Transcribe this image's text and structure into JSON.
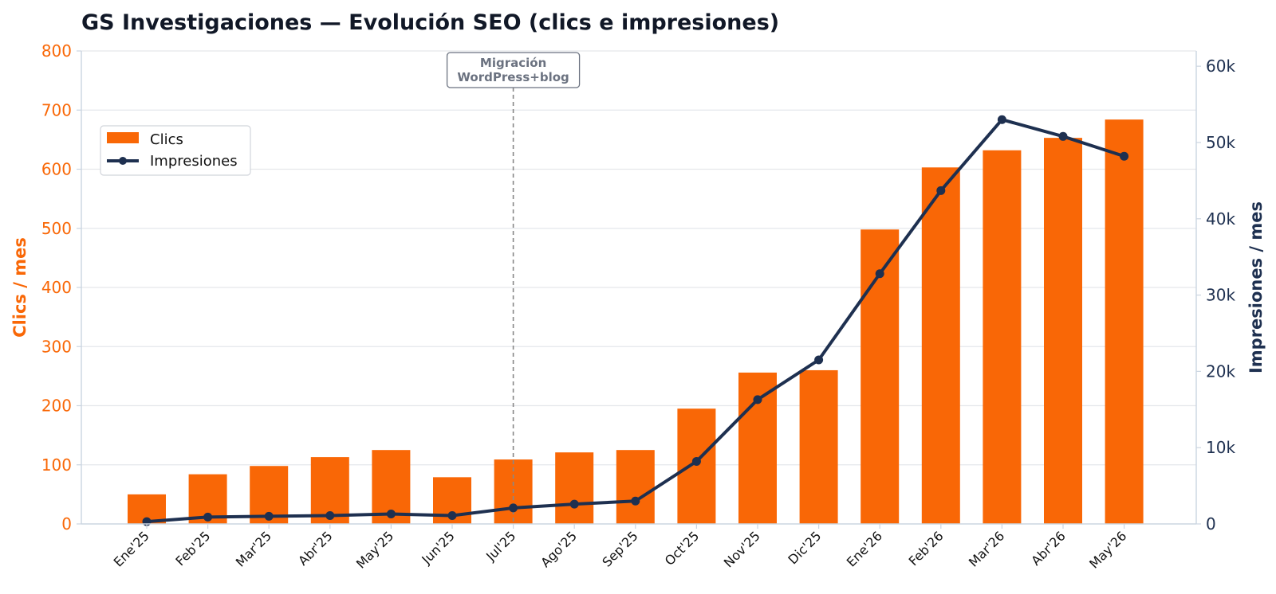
{
  "chart_data": {
    "type": "bar",
    "title": "GS Investigaciones — Evolución SEO (clics e impresiones)",
    "categories": [
      "Ene'25",
      "Feb'25",
      "Mar'25",
      "Abr'25",
      "May'25",
      "Jun'25",
      "Jul'25",
      "Ago'25",
      "Sep'25",
      "Oct'25",
      "Nov'25",
      "Dic'25",
      "Ene'26",
      "Feb'26",
      "Mar'26",
      "Abr'26",
      "May'26"
    ],
    "series": [
      {
        "name": "Clics",
        "type": "bar",
        "axis": "left",
        "color": "#f96706",
        "values": [
          50,
          84,
          98,
          113,
          125,
          79,
          109,
          121,
          125,
          195,
          256,
          260,
          498,
          603,
          632,
          653,
          684
        ]
      },
      {
        "name": "Impresiones",
        "type": "line",
        "axis": "right",
        "color": "#1e3050",
        "values": [
          300,
          900,
          1000,
          1100,
          1300,
          1100,
          2100,
          2600,
          3000,
          8200,
          16300,
          21500,
          32800,
          43700,
          53000,
          50800,
          48200
        ]
      }
    ],
    "y_left": {
      "label": "Clics / mes",
      "range": [
        0,
        800
      ],
      "ticks": [
        0,
        100,
        200,
        300,
        400,
        500,
        600,
        700,
        800
      ],
      "tick_labels": [
        "0",
        "100",
        "200",
        "300",
        "400",
        "500",
        "600",
        "700",
        "800"
      ]
    },
    "y_right": {
      "label": "Impresiones / mes",
      "range": [
        0,
        62000
      ],
      "ticks": [
        0,
        10000,
        20000,
        30000,
        40000,
        50000,
        60000
      ],
      "tick_labels": [
        "0",
        "10k",
        "20k",
        "30k",
        "40k",
        "50k",
        "60k"
      ]
    },
    "annotation": {
      "category": "Jul'25",
      "lines": [
        "Migración",
        "WordPress+blog"
      ]
    },
    "grid": true,
    "legend_position": "top-left"
  }
}
